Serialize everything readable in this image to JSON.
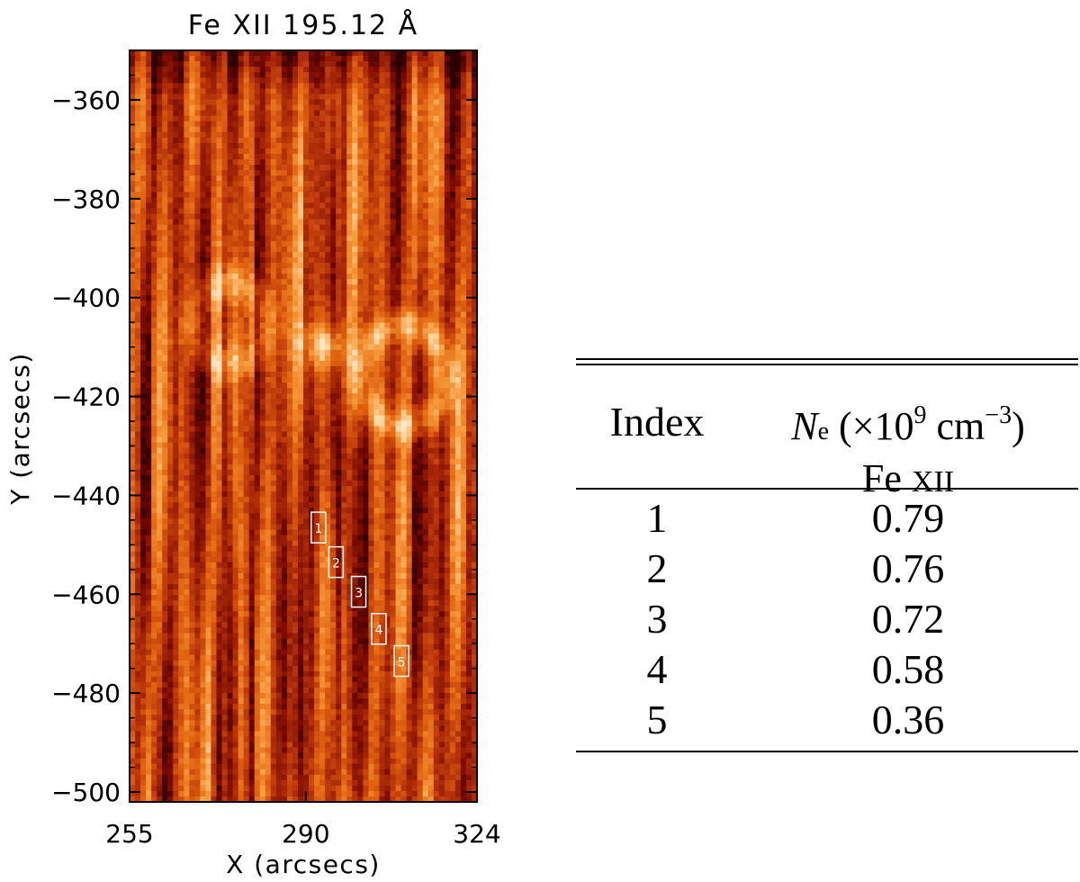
{
  "chart_data": {
    "type": "heatmap",
    "title": "Fe XII 195.12 Å",
    "xlabel": "X (arcsecs)",
    "ylabel": "Y (arcsecs)",
    "xlim": [
      255,
      324
    ],
    "ylim": [
      -502,
      -350
    ],
    "x_ticks": [
      "255",
      "290",
      "324"
    ],
    "x_tick_values": [
      255,
      290,
      324
    ],
    "y_ticks": [
      "−360",
      "−380",
      "−400",
      "−420",
      "−440",
      "−460",
      "−480",
      "−500"
    ],
    "y_tick_values": [
      -360,
      -380,
      -400,
      -420,
      -440,
      -460,
      -480,
      -500
    ],
    "colormap": [
      "#2a0000",
      "#7a0b00",
      "#b4300a",
      "#e2640f",
      "#f59a3c",
      "#fdd9a6",
      "#fffaf0"
    ],
    "boxes": [
      {
        "label": "1",
        "x": 292.5,
        "y": -446.5
      },
      {
        "label": "2",
        "x": 296.0,
        "y": -453.5
      },
      {
        "label": "3",
        "x": 300.5,
        "y": -459.5
      },
      {
        "label": "4",
        "x": 304.5,
        "y": -467.0
      },
      {
        "label": "5",
        "x": 309.0,
        "y": -473.5
      }
    ]
  },
  "table": {
    "header_index": "Index",
    "header_ne_symbol": "N",
    "header_ne_sub": "e",
    "header_ne_unit_a": "(×10",
    "header_ne_exp1": "9",
    "header_ne_unit_b": "cm",
    "header_ne_exp2": "−3",
    "header_ne_unit_c": ")",
    "header_ion_element": "Fe",
    "header_ion_stage": "XII",
    "rows": [
      {
        "index": "1",
        "ne": "0.79"
      },
      {
        "index": "2",
        "ne": "0.76"
      },
      {
        "index": "3",
        "ne": "0.72"
      },
      {
        "index": "4",
        "ne": "0.58"
      },
      {
        "index": "5",
        "ne": "0.36"
      }
    ]
  }
}
